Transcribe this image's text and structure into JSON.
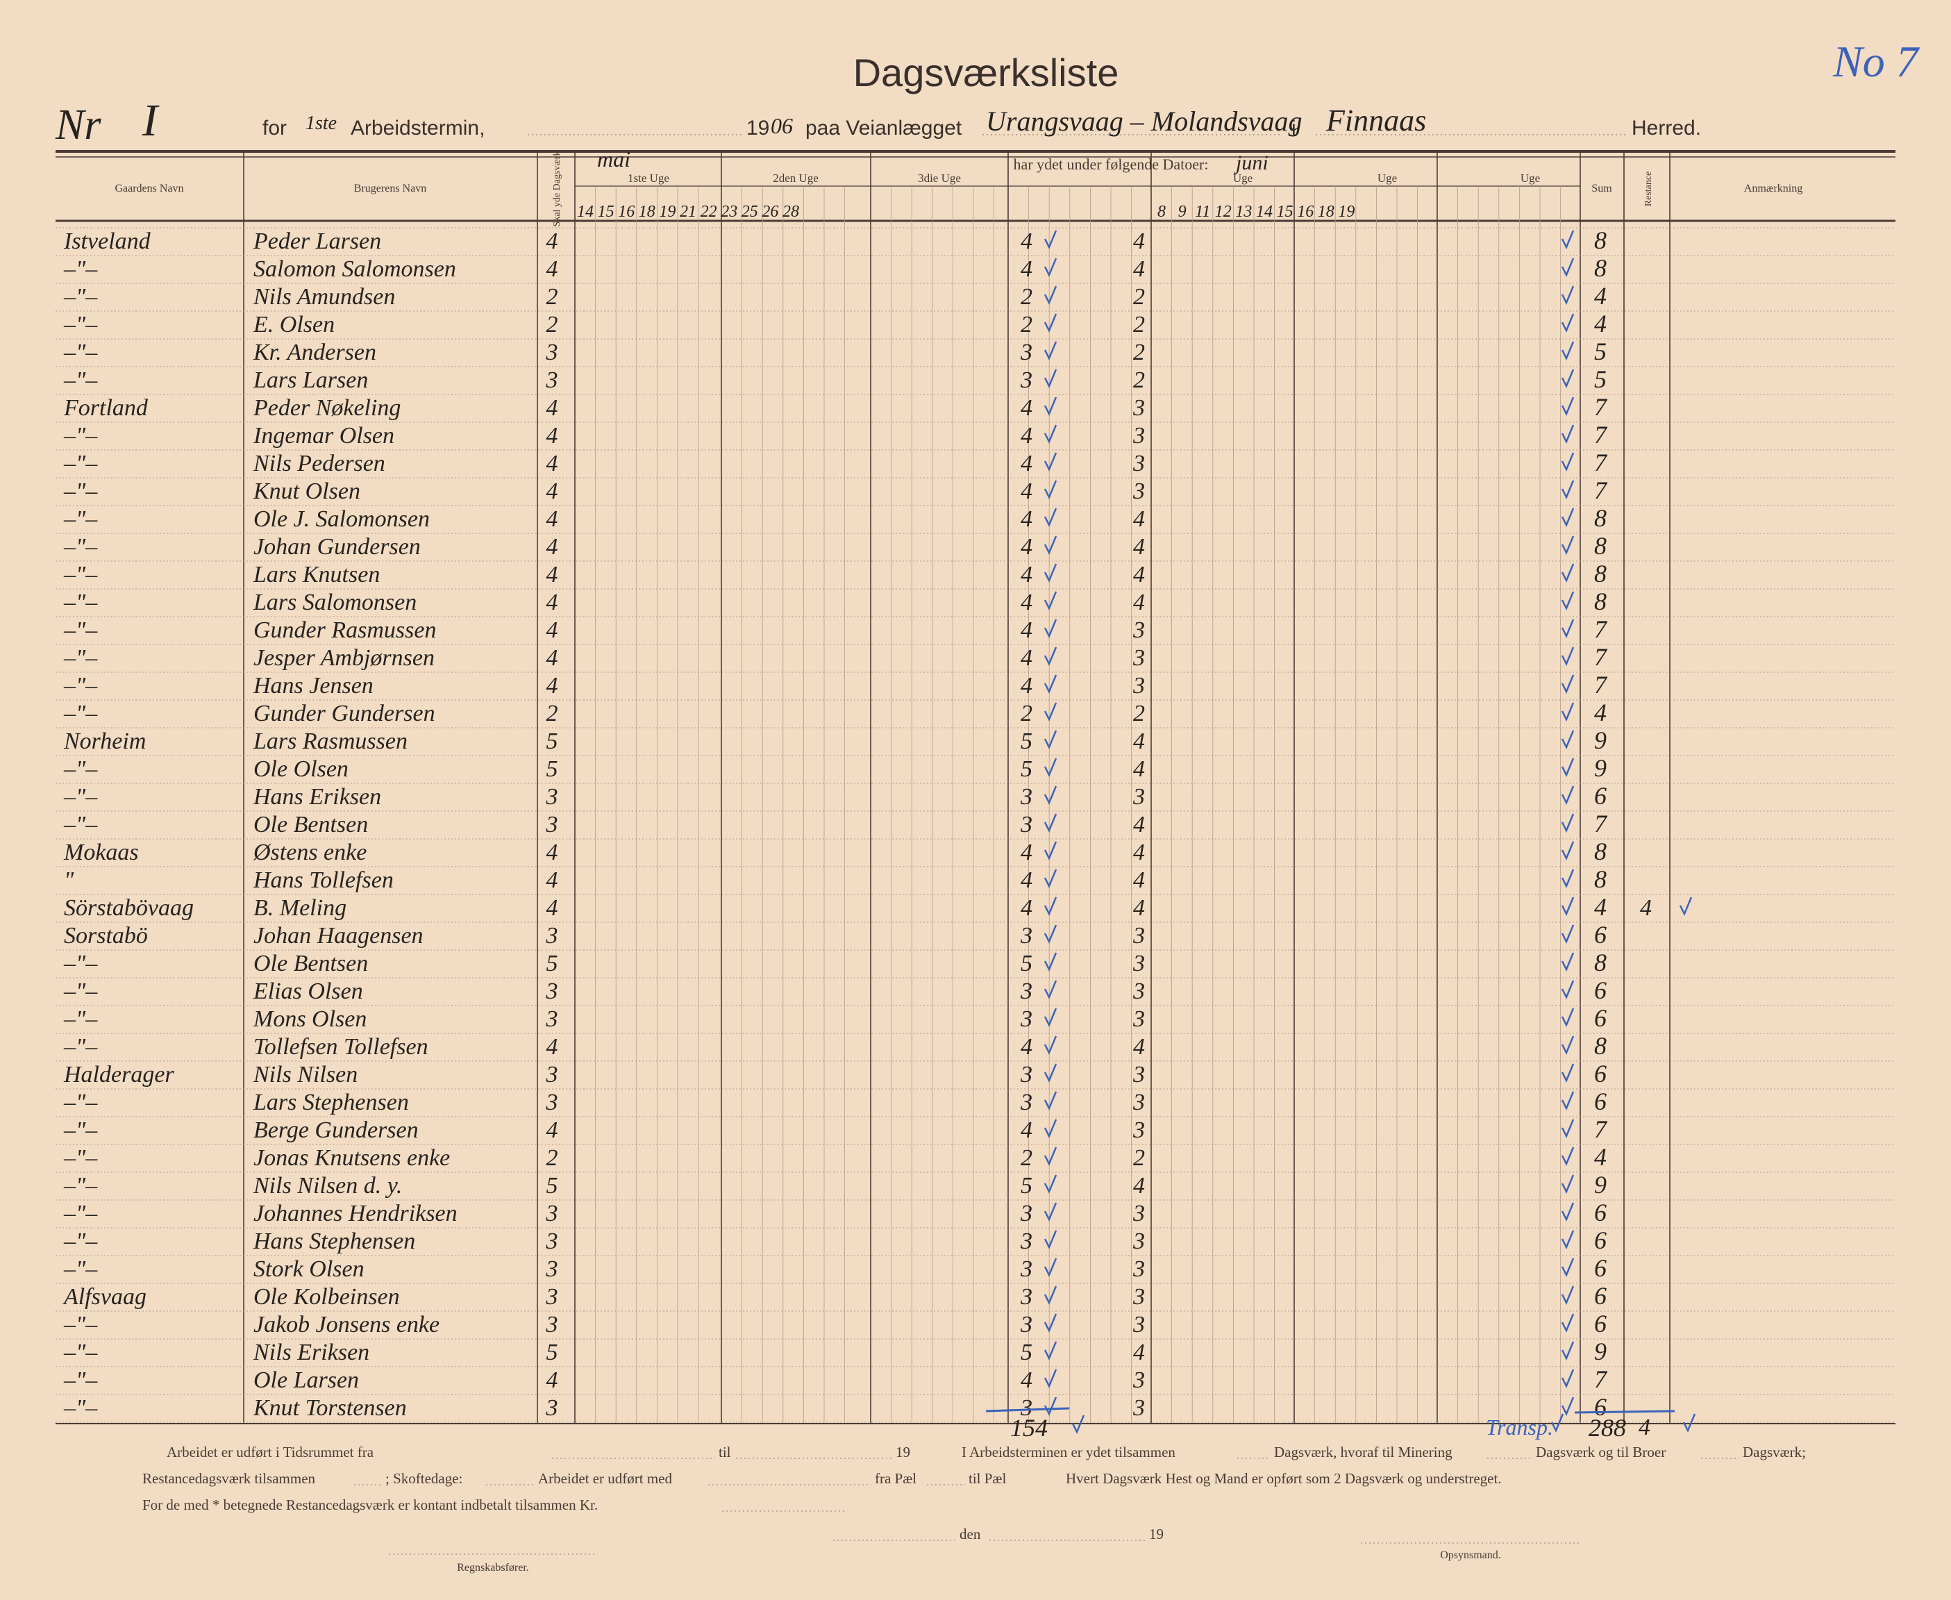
{
  "header": {
    "title": "Dagsværksliste",
    "number_label": "Nr",
    "number": "I",
    "for": "for",
    "termin": "1ste",
    "termin_label": "Arbeidstermin,",
    "year_prefix": "19",
    "year_suffix": "06",
    "paa": "paa Veianlægget",
    "road": "Urangsvaag – Molandsvaag",
    "i": "i",
    "herred_name": "Finnaas",
    "herred": "Herred.",
    "doc_no": "No 7"
  },
  "columns": {
    "farm": "Gaardens Navn",
    "user": "Brugerens Navn",
    "required": "Skal yde Dagsværk",
    "period": "har ydet under følgende Datoer:",
    "month1": "mai",
    "month2": "juni",
    "week1": "1ste Uge",
    "week2": "2den Uge",
    "week3": "3die Uge",
    "week4": "Uge",
    "week5": "Uge",
    "week6": "Uge",
    "sum": "Sum",
    "restance": "Restance",
    "remark": "Anmærkning",
    "days1": [
      "14",
      "15",
      "16",
      "18",
      "19",
      "21",
      "22",
      "23",
      "25",
      "26",
      "28"
    ],
    "days2": [
      "8",
      "9",
      "11",
      "12",
      "13",
      "14",
      "15",
      "16",
      "18",
      "19"
    ]
  },
  "rows": [
    [
      "Istveland",
      "Peder Larsen",
      4,
      4,
      4,
      8
    ],
    [
      "–\"–",
      "Salomon Salomonsen",
      4,
      4,
      4,
      8
    ],
    [
      "–\"–",
      "Nils Amundsen",
      2,
      2,
      2,
      4
    ],
    [
      "–\"–",
      "E. Olsen",
      2,
      2,
      2,
      4
    ],
    [
      "–\"–",
      "Kr. Andersen",
      3,
      3,
      2,
      5
    ],
    [
      "–\"–",
      "Lars Larsen",
      3,
      3,
      2,
      5
    ],
    [
      "Fortland",
      "Peder Nøkeling",
      4,
      4,
      3,
      7
    ],
    [
      "–\"–",
      "Ingemar Olsen",
      4,
      4,
      3,
      7
    ],
    [
      "–\"–",
      "Nils Pedersen",
      4,
      4,
      3,
      7
    ],
    [
      "–\"–",
      "Knut Olsen",
      4,
      4,
      3,
      7
    ],
    [
      "–\"–",
      "Ole J. Salomonsen",
      4,
      4,
      4,
      8
    ],
    [
      "–\"–",
      "Johan Gundersen",
      4,
      4,
      4,
      8
    ],
    [
      "–\"–",
      "Lars Knutsen",
      4,
      4,
      4,
      8
    ],
    [
      "–\"–",
      "Lars Salomonsen",
      4,
      4,
      4,
      8
    ],
    [
      "–\"–",
      "Gunder Rasmussen",
      4,
      4,
      3,
      7
    ],
    [
      "–\"–",
      "Jesper Ambjørnsen",
      4,
      4,
      3,
      7
    ],
    [
      "–\"–",
      "Hans Jensen",
      4,
      4,
      3,
      7
    ],
    [
      "–\"–",
      "Gunder Gundersen",
      2,
      2,
      2,
      4
    ],
    [
      "Norheim",
      "Lars Rasmussen",
      5,
      5,
      4,
      9
    ],
    [
      "–\"–",
      "Ole Olsen",
      5,
      5,
      4,
      9
    ],
    [
      "–\"–",
      "Hans Eriksen",
      3,
      3,
      3,
      6
    ],
    [
      "–\"–",
      "Ole Bentsen",
      3,
      3,
      4,
      7
    ],
    [
      "Mokaas",
      "Østens enke",
      4,
      4,
      4,
      8
    ],
    [
      "\"",
      "Hans Tollefsen",
      4,
      4,
      4,
      8
    ],
    [
      "Sörstabövaag",
      "B. Meling",
      4,
      4,
      4,
      4,
      4
    ],
    [
      "Sorstabö",
      "Johan Haagensen",
      3,
      3,
      3,
      6
    ],
    [
      "–\"–",
      "Ole Bentsen",
      5,
      5,
      3,
      8
    ],
    [
      "–\"–",
      "Elias Olsen",
      3,
      3,
      3,
      6
    ],
    [
      "–\"–",
      "Mons Olsen",
      3,
      3,
      3,
      6
    ],
    [
      "–\"–",
      "Tollefsen Tollefsen",
      4,
      4,
      4,
      8
    ],
    [
      "Halderager",
      "Nils Nilsen",
      3,
      3,
      3,
      6
    ],
    [
      "–\"–",
      "Lars Stephensen",
      3,
      3,
      3,
      6
    ],
    [
      "–\"–",
      "Berge Gundersen",
      4,
      4,
      3,
      7
    ],
    [
      "–\"–",
      "Jonas Knutsens enke",
      2,
      2,
      2,
      4
    ],
    [
      "–\"–",
      "Nils Nilsen d. y.",
      5,
      5,
      4,
      9
    ],
    [
      "–\"–",
      "Johannes Hendriksen",
      3,
      3,
      3,
      6
    ],
    [
      "–\"–",
      "Hans Stephensen",
      3,
      3,
      3,
      6
    ],
    [
      "–\"–",
      "Stork Olsen",
      3,
      3,
      3,
      6
    ],
    [
      "Alfsvaag",
      "Ole Kolbeinsen",
      3,
      3,
      3,
      6
    ],
    [
      "–\"–",
      "Jakob Jonsens enke",
      3,
      3,
      3,
      6
    ],
    [
      "–\"–",
      "Nils Eriksen",
      5,
      5,
      4,
      9
    ],
    [
      "–\"–",
      "Ole Larsen",
      4,
      4,
      3,
      7
    ],
    [
      "–\"–",
      "Knut Torstensen",
      3,
      3,
      3,
      6
    ]
  ],
  "totals": {
    "first": 154,
    "transport": "Transp.",
    "sum": 288,
    "restance": 4
  },
  "footer": {
    "l1a": "Arbeidet er udført i Tidsrummet fra",
    "l1b": "til",
    "l1c": "19",
    "l1d": "I Arbeidsterminen er ydet tilsammen",
    "l1e": "Dagsværk, hvoraf til Minering",
    "l1f": "Dagsværk og til Broer",
    "l1g": "Dagsværk;",
    "l2a": "Restancedagsværk tilsammen",
    "l2b": "; Skoftedage:",
    "l2c": "Arbeidet er udført med",
    "l2d": "fra Pæl",
    "l2e": "til Pæl",
    "l2f": "Hvert Dagsværk Hest og Mand er opført som 2 Dagsværk og understreget.",
    "l3": "For de med * betegnede Restancedagsværk er kontant indbetalt tilsammen Kr.",
    "l4a": "den",
    "l4b": "19",
    "sign1": "Regnskabsfører.",
    "sign2": "Opsynsmand."
  }
}
